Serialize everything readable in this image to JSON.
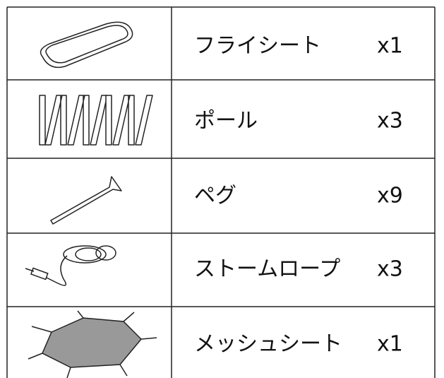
{
  "table": {
    "rows": [
      {
        "name": "フライシート",
        "qty": "x1"
      },
      {
        "name": "ポール",
        "qty": "x3"
      },
      {
        "name": "ペグ",
        "qty": "x9"
      },
      {
        "name": "ストームロープ",
        "qty": "x3"
      },
      {
        "name": "メッシュシート",
        "qty": "x1"
      }
    ]
  }
}
